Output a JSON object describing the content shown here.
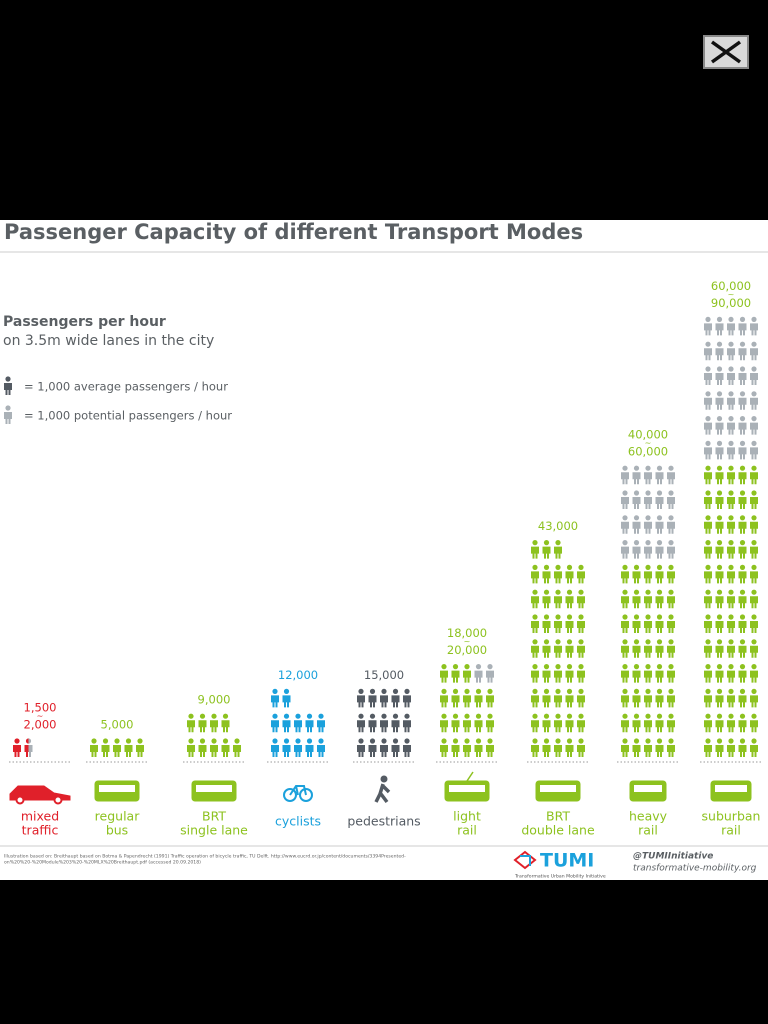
{
  "chart_data": {
    "type": "pictogram",
    "title": "Passenger Capacity of different Transport Modes",
    "subtitle": [
      "Passengers per hour",
      "on 3.5m wide lanes in the city"
    ],
    "icon_value": 1000,
    "categories": [
      [
        "mixed",
        "traffic"
      ],
      [
        "regular",
        "bus"
      ],
      [
        "BRT",
        "single  lane"
      ],
      [
        "cyclists"
      ],
      [
        "pedestrians"
      ],
      [
        "light",
        "rail"
      ],
      [
        "BRT",
        "double lane"
      ],
      [
        "heavy",
        "rail"
      ],
      [
        "suburban",
        "rail"
      ]
    ],
    "colors": [
      "#e0202a",
      "#8dc21f",
      "#8dc21f",
      "#1ba1dc",
      "#545b63",
      "#8dc21f",
      "#8dc21f",
      "#8dc21f",
      "#8dc21f"
    ],
    "series": [
      {
        "name": "= 1,000 average passengers / hour",
        "color": "#545b63",
        "values": [
          1500,
          5000,
          9000,
          12000,
          15000,
          18000,
          43000,
          40000,
          60000
        ],
        "value_labels": [
          "1,500",
          "5,000",
          "9,000",
          "12,000",
          "15,000",
          "18,000",
          "43,000",
          "40,000",
          "60,000"
        ]
      },
      {
        "name": "= 1,000 potential passengers / hour",
        "color": "#aab1b7",
        "values": [
          2000,
          null,
          null,
          null,
          null,
          20000,
          null,
          60000,
          90000
        ],
        "value_labels": [
          "2,000",
          null,
          null,
          null,
          null,
          "20,000",
          null,
          "60,000",
          "90,000"
        ]
      }
    ]
  },
  "footer": {
    "source": [
      "Illustration based on: Breithaupt based on Botma & Papendrecht (1991) Traffic operation of bicycle traffic, TU Delft. http://www.eucrd.or.jp/content/documents/3394Presented-",
      "on%20%20-%20Module%203%20-%20MLX%20Breithaupt.pdf (accessed 20.09.2018)"
    ],
    "logo": "TUMI",
    "logo_tagline": "Transformative Urban Mobility Initiative",
    "handle": "@TUMIInitiative",
    "website": "transformative-mobility.org"
  }
}
